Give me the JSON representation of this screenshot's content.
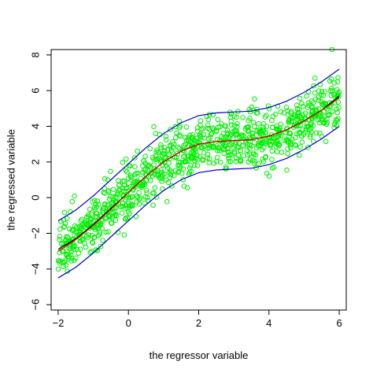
{
  "chart_data": {
    "type": "scatter",
    "title": "",
    "xlabel": "the regressor variable",
    "ylabel": "the regressed variable",
    "xlim": [
      -2.2,
      6.2
    ],
    "ylim": [
      -6.3,
      8.3
    ],
    "x_ticks": [
      -2,
      0,
      2,
      4,
      6
    ],
    "x_tick_labels": [
      "−2",
      "0",
      "2",
      "4",
      "6"
    ],
    "y_ticks": [
      -6,
      -4,
      -2,
      0,
      2,
      4,
      6,
      8
    ],
    "y_tick_labels": [
      "−6",
      "−4",
      "−2",
      "0",
      "2",
      "4",
      "6",
      "8"
    ],
    "grid": false,
    "legend": "none",
    "point_color": "#00ee00",
    "line_colors": {
      "fit": "#000000",
      "true_curve": "#cc0000",
      "bands": "#0000cc"
    },
    "series": [
      {
        "kind": "line",
        "x": [
          -2.0,
          -1.5,
          -1.0,
          -0.5,
          0.0,
          0.5,
          1.0,
          1.5,
          2.0,
          2.5,
          3.0,
          3.5,
          4.0,
          4.5,
          5.0,
          5.5,
          6.0
        ],
        "y": [
          -2.9,
          -2.3,
          -1.5,
          -0.6,
          0.3,
          1.2,
          2.0,
          2.6,
          3.0,
          3.15,
          3.2,
          3.25,
          3.45,
          3.8,
          4.3,
          4.9,
          5.7
        ]
      },
      {
        "kind": "line",
        "x": [
          -2.0,
          -1.5,
          -1.0,
          -0.5,
          0.0,
          0.5,
          1.0,
          1.5,
          2.0,
          2.5,
          3.0,
          3.5,
          4.0,
          4.5,
          5.0,
          5.5,
          6.0
        ],
        "y": [
          -3.0,
          -2.35,
          -1.55,
          -0.65,
          0.3,
          1.2,
          2.0,
          2.6,
          3.0,
          3.15,
          3.2,
          3.25,
          3.45,
          3.8,
          4.3,
          4.9,
          5.6
        ]
      },
      {
        "kind": "line",
        "x": [
          -2.0,
          -1.5,
          -1.0,
          -0.5,
          0.0,
          0.5,
          1.0,
          1.5,
          2.0,
          2.5,
          3.0,
          3.5,
          4.0,
          4.5,
          5.0,
          5.5,
          6.0
        ],
        "y": [
          -1.3,
          -0.7,
          0.1,
          1.0,
          1.9,
          2.8,
          3.6,
          4.2,
          4.6,
          4.75,
          4.8,
          4.85,
          5.05,
          5.4,
          5.9,
          6.5,
          7.2
        ]
      },
      {
        "kind": "line",
        "x": [
          -2.0,
          -1.5,
          -1.0,
          -0.5,
          0.0,
          0.5,
          1.0,
          1.5,
          2.0,
          2.5,
          3.0,
          3.5,
          4.0,
          4.5,
          5.0,
          5.5,
          6.0
        ],
        "y": [
          -4.5,
          -3.9,
          -3.1,
          -2.2,
          -1.3,
          -0.4,
          0.4,
          1.0,
          1.4,
          1.55,
          1.6,
          1.65,
          1.85,
          2.2,
          2.7,
          3.3,
          4.0
        ]
      }
    ],
    "scatter": {
      "n_points": 1000,
      "x_range": [
        -2.0,
        6.0
      ],
      "noise_sd": 0.78,
      "seed": 7
    }
  }
}
